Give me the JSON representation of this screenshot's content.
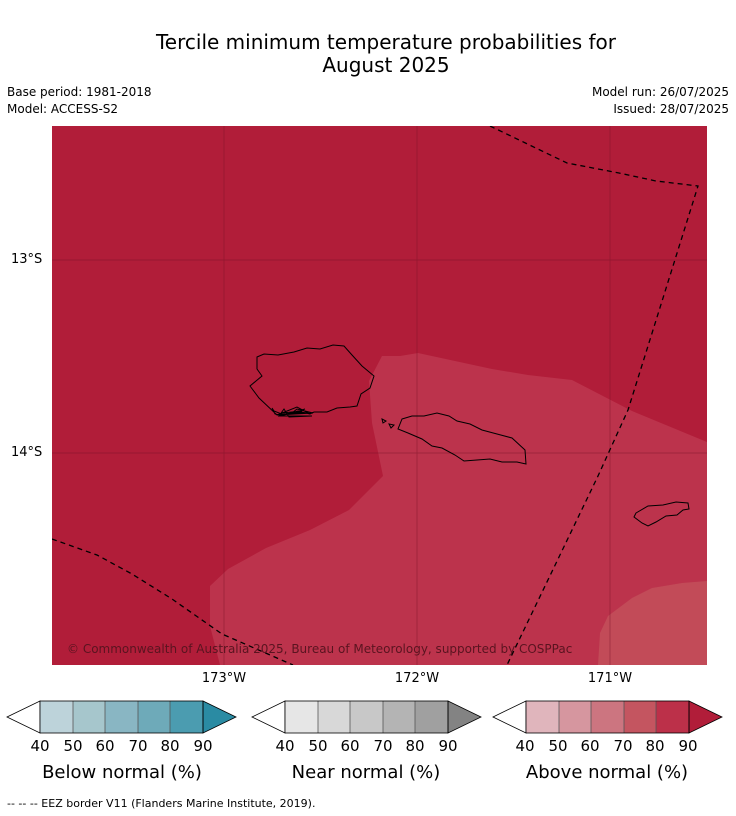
{
  "header": {
    "title_line1": "Tercile minimum temperature probabilities for",
    "title_line2": "August 2025",
    "base_period": "Base period: 1981-2018",
    "model": "Model: ACCESS-S2",
    "model_run": "Model run: 26/07/2025",
    "issued": "Issued: 28/07/2025"
  },
  "map": {
    "lat_labels": [
      "13°S",
      "14°S"
    ],
    "lon_labels": [
      "173°W",
      "172°W",
      "171°W"
    ],
    "credit": "© Commonwealth of Australia 2025, Bureau of Meteorology, supported by COSPPac",
    "colors": {
      "above_80_90": "#b11d39",
      "above_70_80": "#bc334c",
      "above_60_70": "#c24b58"
    }
  },
  "legends": [
    {
      "title": "Below normal (%)",
      "ticks": [
        "40",
        "50",
        "60",
        "70",
        "80",
        "90"
      ],
      "colors": [
        "#ffffff",
        "#bdd3da",
        "#a6c6cc",
        "#89b6c3",
        "#6eaab9",
        "#4b9cb0",
        "#2a8ba3"
      ]
    },
    {
      "title": "Near normal (%)",
      "ticks": [
        "40",
        "50",
        "60",
        "70",
        "80",
        "90"
      ],
      "colors": [
        "#ffffff",
        "#e6e6e6",
        "#d8d8d8",
        "#c8c8c8",
        "#b4b4b4",
        "#a0a0a0",
        "#838383"
      ]
    },
    {
      "title": "Above normal (%)",
      "ticks": [
        "40",
        "50",
        "60",
        "70",
        "80",
        "90"
      ],
      "colors": [
        "#ffffff",
        "#e0b5bc",
        "#d6969f",
        "#cc7580",
        "#c45560",
        "#bc3049",
        "#b11d39"
      ]
    }
  ],
  "footnote": "--  --  -- EEZ border V11 (Flanders Marine Institute, 2019)."
}
